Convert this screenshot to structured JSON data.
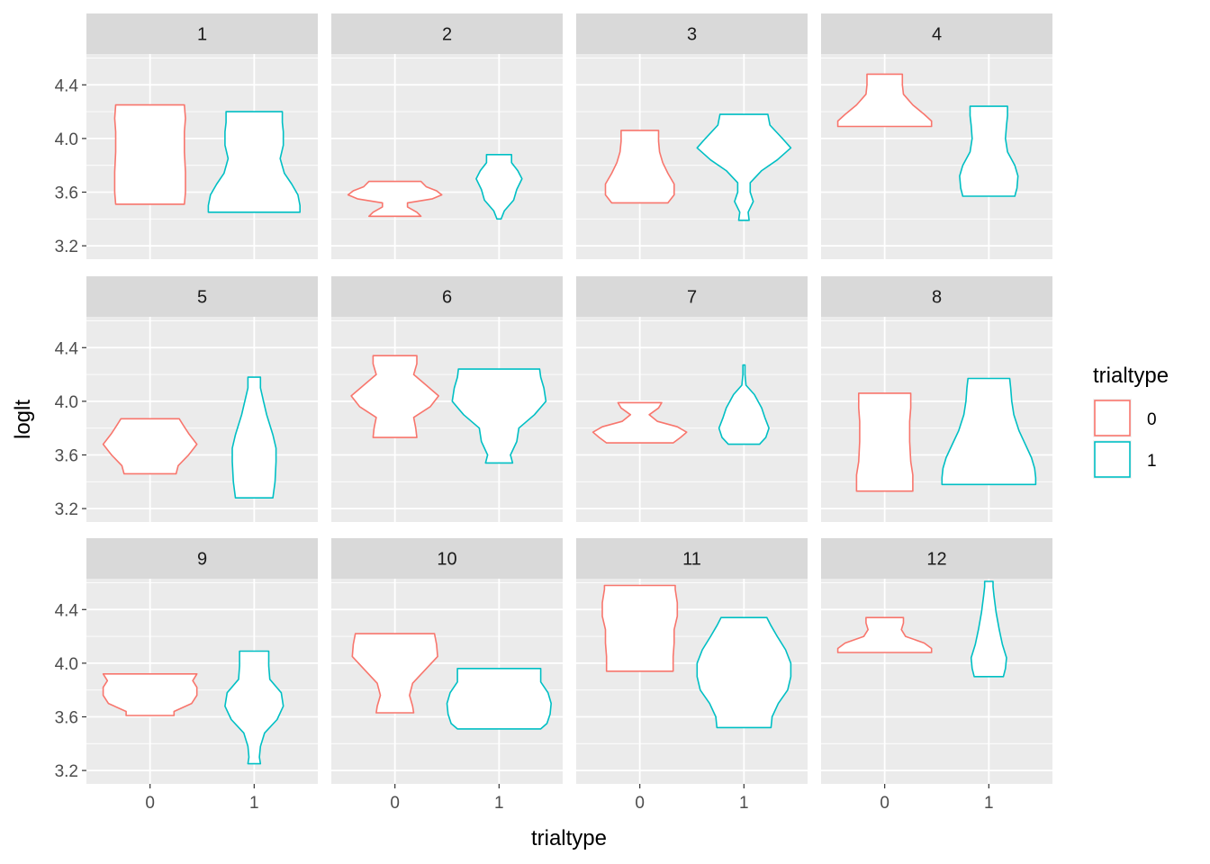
{
  "chart_data": {
    "type": "violin",
    "facet_variable": "panel",
    "facets": [
      "1",
      "2",
      "3",
      "4",
      "5",
      "6",
      "7",
      "8",
      "9",
      "10",
      "11",
      "12"
    ],
    "x_categories": [
      "0",
      "1"
    ],
    "xlabel": "trialtype",
    "ylabel": "loglt",
    "y_ticks": [
      3.2,
      3.6,
      4.0,
      4.4
    ],
    "y_tick_labels": [
      "3.2",
      "3.6",
      "4.0",
      "4.4"
    ],
    "ylim": [
      3.1,
      4.63
    ],
    "legend": {
      "title": "trialtype",
      "position": "right",
      "entries": [
        {
          "label": "0",
          "color": "#F8766D"
        },
        {
          "label": "1",
          "color": "#00BFC4"
        }
      ]
    },
    "colors": {
      "0": "#F8766D",
      "1": "#00BFC4"
    },
    "panel_background": "#EBEBEB",
    "strip_background": "#D9D9D9",
    "grid": true,
    "panels": [
      {
        "facet": "1",
        "violins": [
          {
            "trialtype": "0",
            "profile": [
              [
                3.51,
                0.33
              ],
              [
                3.6,
                0.34
              ],
              [
                3.75,
                0.34
              ],
              [
                3.9,
                0.33
              ],
              [
                4.05,
                0.33
              ],
              [
                4.15,
                0.34
              ],
              [
                4.25,
                0.33
              ]
            ]
          },
          {
            "trialtype": "1",
            "profile": [
              [
                3.45,
                0.44
              ],
              [
                3.5,
                0.44
              ],
              [
                3.58,
                0.42
              ],
              [
                3.66,
                0.36
              ],
              [
                3.74,
                0.29
              ],
              [
                3.85,
                0.25
              ],
              [
                3.95,
                0.28
              ],
              [
                4.05,
                0.28
              ],
              [
                4.12,
                0.27
              ],
              [
                4.2,
                0.27
              ]
            ]
          }
        ]
      },
      {
        "facet": "2",
        "violins": [
          {
            "trialtype": "0",
            "profile": [
              [
                3.42,
                0.25
              ],
              [
                3.45,
                0.21
              ],
              [
                3.49,
                0.12
              ],
              [
                3.52,
                0.12
              ],
              [
                3.55,
                0.36
              ],
              [
                3.58,
                0.45
              ],
              [
                3.61,
                0.4
              ],
              [
                3.64,
                0.3
              ],
              [
                3.68,
                0.25
              ]
            ]
          },
          {
            "trialtype": "1",
            "profile": [
              [
                3.4,
                0.02
              ],
              [
                3.46,
                0.05
              ],
              [
                3.54,
                0.14
              ],
              [
                3.62,
                0.17
              ],
              [
                3.7,
                0.22
              ],
              [
                3.76,
                0.18
              ],
              [
                3.82,
                0.12
              ],
              [
                3.88,
                0.12
              ]
            ]
          }
        ]
      },
      {
        "facet": "3",
        "violins": [
          {
            "trialtype": "0",
            "profile": [
              [
                3.52,
                0.27
              ],
              [
                3.58,
                0.33
              ],
              [
                3.66,
                0.33
              ],
              [
                3.74,
                0.27
              ],
              [
                3.82,
                0.22
              ],
              [
                3.9,
                0.19
              ],
              [
                3.98,
                0.18
              ],
              [
                4.06,
                0.18
              ]
            ]
          },
          {
            "trialtype": "1",
            "profile": [
              [
                3.39,
                0.05
              ],
              [
                3.45,
                0.04
              ],
              [
                3.53,
                0.09
              ],
              [
                3.6,
                0.06
              ],
              [
                3.67,
                0.06
              ],
              [
                3.76,
                0.17
              ],
              [
                3.84,
                0.32
              ],
              [
                3.93,
                0.45
              ],
              [
                4.0,
                0.37
              ],
              [
                4.1,
                0.25
              ],
              [
                4.18,
                0.23
              ]
            ]
          }
        ]
      },
      {
        "facet": "4",
        "violins": [
          {
            "trialtype": "0",
            "profile": [
              [
                4.09,
                0.45
              ],
              [
                4.13,
                0.45
              ],
              [
                4.18,
                0.38
              ],
              [
                4.25,
                0.27
              ],
              [
                4.33,
                0.18
              ],
              [
                4.4,
                0.17
              ],
              [
                4.48,
                0.17
              ]
            ]
          },
          {
            "trialtype": "1",
            "profile": [
              [
                3.57,
                0.25
              ],
              [
                3.63,
                0.27
              ],
              [
                3.72,
                0.28
              ],
              [
                3.8,
                0.25
              ],
              [
                3.9,
                0.18
              ],
              [
                4.0,
                0.16
              ],
              [
                4.1,
                0.17
              ],
              [
                4.17,
                0.18
              ],
              [
                4.24,
                0.18
              ]
            ]
          }
        ]
      },
      {
        "facet": "5",
        "violins": [
          {
            "trialtype": "0",
            "profile": [
              [
                3.46,
                0.25
              ],
              [
                3.52,
                0.27
              ],
              [
                3.6,
                0.37
              ],
              [
                3.68,
                0.45
              ],
              [
                3.76,
                0.37
              ],
              [
                3.82,
                0.32
              ],
              [
                3.87,
                0.28
              ]
            ]
          },
          {
            "trialtype": "1",
            "profile": [
              [
                3.28,
                0.18
              ],
              [
                3.4,
                0.2
              ],
              [
                3.55,
                0.21
              ],
              [
                3.65,
                0.21
              ],
              [
                3.75,
                0.18
              ],
              [
                3.9,
                0.12
              ],
              [
                4.0,
                0.09
              ],
              [
                4.1,
                0.06
              ],
              [
                4.18,
                0.06
              ]
            ]
          }
        ]
      },
      {
        "facet": "6",
        "violins": [
          {
            "trialtype": "0",
            "profile": [
              [
                3.73,
                0.21
              ],
              [
                3.8,
                0.2
              ],
              [
                3.88,
                0.18
              ],
              [
                3.96,
                0.34
              ],
              [
                4.04,
                0.42
              ],
              [
                4.12,
                0.3
              ],
              [
                4.2,
                0.18
              ],
              [
                4.28,
                0.21
              ],
              [
                4.34,
                0.21
              ]
            ]
          },
          {
            "trialtype": "1",
            "profile": [
              [
                3.54,
                0.13
              ],
              [
                3.6,
                0.11
              ],
              [
                3.7,
                0.17
              ],
              [
                3.8,
                0.19
              ],
              [
                3.9,
                0.34
              ],
              [
                4.0,
                0.45
              ],
              [
                4.1,
                0.43
              ],
              [
                4.18,
                0.4
              ],
              [
                4.24,
                0.39
              ]
            ]
          }
        ]
      },
      {
        "facet": "7",
        "violins": [
          {
            "trialtype": "0",
            "profile": [
              [
                3.69,
                0.32
              ],
              [
                3.73,
                0.39
              ],
              [
                3.77,
                0.45
              ],
              [
                3.81,
                0.36
              ],
              [
                3.85,
                0.17
              ],
              [
                3.9,
                0.09
              ],
              [
                3.95,
                0.18
              ],
              [
                3.99,
                0.21
              ]
            ]
          },
          {
            "trialtype": "1",
            "profile": [
              [
                3.68,
                0.15
              ],
              [
                3.73,
                0.21
              ],
              [
                3.8,
                0.24
              ],
              [
                3.88,
                0.2
              ],
              [
                3.95,
                0.17
              ],
              [
                4.05,
                0.1
              ],
              [
                4.12,
                0.02
              ],
              [
                4.2,
                0.01
              ],
              [
                4.27,
                0.01
              ]
            ]
          }
        ]
      },
      {
        "facet": "8",
        "violins": [
          {
            "trialtype": "0",
            "profile": [
              [
                3.33,
                0.27
              ],
              [
                3.45,
                0.27
              ],
              [
                3.55,
                0.25
              ],
              [
                3.7,
                0.24
              ],
              [
                3.85,
                0.24
              ],
              [
                3.95,
                0.25
              ],
              [
                4.06,
                0.25
              ]
            ]
          },
          {
            "trialtype": "1",
            "profile": [
              [
                3.38,
                0.45
              ],
              [
                3.43,
                0.45
              ],
              [
                3.5,
                0.44
              ],
              [
                3.58,
                0.41
              ],
              [
                3.68,
                0.35
              ],
              [
                3.78,
                0.29
              ],
              [
                3.9,
                0.24
              ],
              [
                4.0,
                0.22
              ],
              [
                4.1,
                0.21
              ],
              [
                4.17,
                0.2
              ]
            ]
          }
        ]
      },
      {
        "facet": "9",
        "violins": [
          {
            "trialtype": "0",
            "profile": [
              [
                3.61,
                0.23
              ],
              [
                3.64,
                0.23
              ],
              [
                3.7,
                0.4
              ],
              [
                3.76,
                0.45
              ],
              [
                3.82,
                0.45
              ],
              [
                3.87,
                0.41
              ],
              [
                3.92,
                0.45
              ]
            ]
          },
          {
            "trialtype": "1",
            "profile": [
              [
                3.25,
                0.06
              ],
              [
                3.3,
                0.05
              ],
              [
                3.38,
                0.06
              ],
              [
                3.48,
                0.1
              ],
              [
                3.58,
                0.22
              ],
              [
                3.68,
                0.28
              ],
              [
                3.78,
                0.26
              ],
              [
                3.88,
                0.15
              ],
              [
                3.98,
                0.14
              ],
              [
                4.09,
                0.14
              ]
            ]
          }
        ]
      },
      {
        "facet": "10",
        "violins": [
          {
            "trialtype": "0",
            "profile": [
              [
                3.63,
                0.18
              ],
              [
                3.68,
                0.17
              ],
              [
                3.76,
                0.14
              ],
              [
                3.85,
                0.17
              ],
              [
                3.95,
                0.29
              ],
              [
                4.05,
                0.41
              ],
              [
                4.14,
                0.4
              ],
              [
                4.22,
                0.38
              ]
            ]
          },
          {
            "trialtype": "1",
            "profile": [
              [
                3.51,
                0.4
              ],
              [
                3.55,
                0.46
              ],
              [
                3.62,
                0.49
              ],
              [
                3.7,
                0.5
              ],
              [
                3.78,
                0.47
              ],
              [
                3.86,
                0.4
              ],
              [
                3.94,
                0.4
              ],
              [
                3.96,
                0.4
              ]
            ]
          }
        ]
      },
      {
        "facet": "11",
        "violins": [
          {
            "trialtype": "0",
            "profile": [
              [
                3.94,
                0.32
              ],
              [
                4.05,
                0.32
              ],
              [
                4.15,
                0.33
              ],
              [
                4.25,
                0.33
              ],
              [
                4.35,
                0.36
              ],
              [
                4.45,
                0.36
              ],
              [
                4.55,
                0.34
              ],
              [
                4.58,
                0.34
              ]
            ]
          },
          {
            "trialtype": "1",
            "profile": [
              [
                3.52,
                0.26
              ],
              [
                3.6,
                0.27
              ],
              [
                3.7,
                0.33
              ],
              [
                3.8,
                0.42
              ],
              [
                3.9,
                0.45
              ],
              [
                4.0,
                0.45
              ],
              [
                4.1,
                0.4
              ],
              [
                4.2,
                0.32
              ],
              [
                4.28,
                0.26
              ],
              [
                4.34,
                0.22
              ]
            ]
          }
        ]
      },
      {
        "facet": "12",
        "violins": [
          {
            "trialtype": "0",
            "profile": [
              [
                4.08,
                0.45
              ],
              [
                4.11,
                0.45
              ],
              [
                4.15,
                0.38
              ],
              [
                4.2,
                0.2
              ],
              [
                4.25,
                0.16
              ],
              [
                4.3,
                0.18
              ],
              [
                4.34,
                0.18
              ]
            ]
          },
          {
            "trialtype": "1",
            "profile": [
              [
                3.9,
                0.14
              ],
              [
                3.96,
                0.16
              ],
              [
                4.04,
                0.17
              ],
              [
                4.14,
                0.13
              ],
              [
                4.25,
                0.1
              ],
              [
                4.38,
                0.07
              ],
              [
                4.5,
                0.05
              ],
              [
                4.57,
                0.04
              ],
              [
                4.61,
                0.04
              ]
            ]
          }
        ]
      }
    ]
  }
}
